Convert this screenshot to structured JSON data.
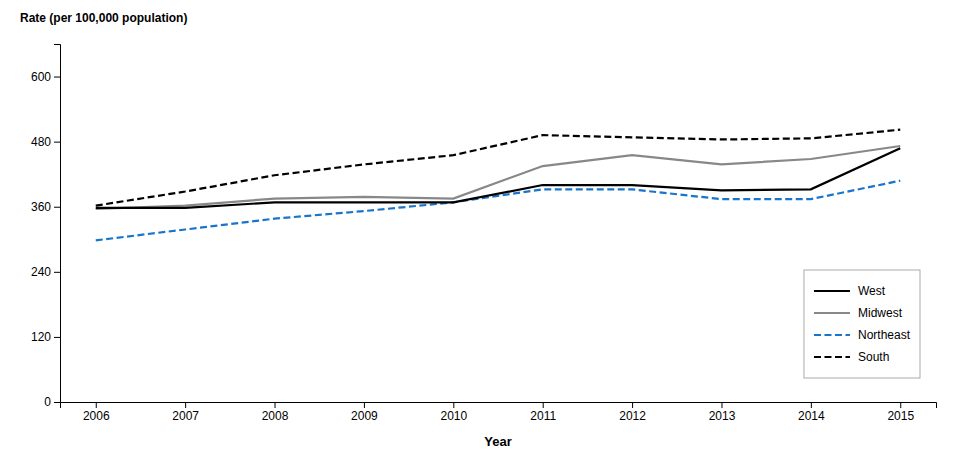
{
  "chart_data": {
    "type": "line",
    "xlabel": "Year",
    "ylabel": "Rate (per 100,000 population)",
    "x": [
      2006,
      2007,
      2008,
      2009,
      2010,
      2011,
      2012,
      2013,
      2014,
      2015
    ],
    "series": [
      {
        "name": "South",
        "color": "#000000",
        "line_style": "dashed",
        "values": [
          362,
          388,
          418,
          438,
          455,
          492,
          488,
          484,
          486,
          502
        ]
      },
      {
        "name": "Northeast",
        "color": "#1874CD",
        "line_style": "dashed",
        "values": [
          298,
          318,
          338,
          352,
          368,
          392,
          392,
          374,
          374,
          408
        ]
      },
      {
        "name": "Midwest",
        "color": "#888888",
        "line_style": "solid",
        "values": [
          356,
          362,
          375,
          378,
          375,
          435,
          455,
          438,
          448,
          472
        ]
      },
      {
        "name": "West",
        "color": "#000000",
        "line_style": "solid",
        "values": [
          358,
          358,
          368,
          368,
          368,
          400,
          400,
          390,
          392,
          468
        ]
      }
    ],
    "xlim": [
      2005.6,
      2015.4
    ],
    "xticks": [
      2006,
      2007,
      2008,
      2009,
      2010,
      2011,
      2012,
      2013,
      2014,
      2015
    ],
    "ylim": [
      0,
      660
    ],
    "yticks": [
      0,
      120,
      240,
      360,
      480,
      600
    ],
    "grid": false,
    "legend": "lower right"
  }
}
